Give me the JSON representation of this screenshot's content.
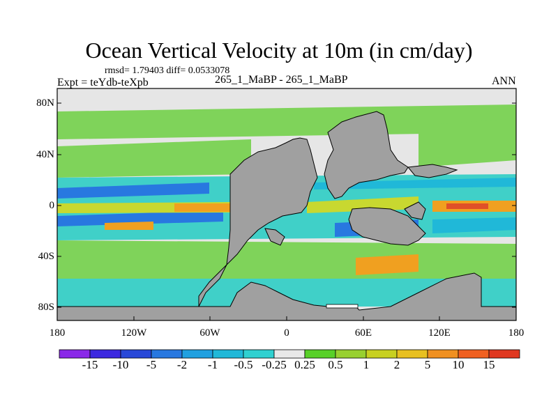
{
  "title": "Ocean Vertical Velocity at 10m (in cm/day)",
  "stats": "rmsd= 1.79403 diff= 0.0533078",
  "experiment": "Expt = teYdb-teXpb",
  "case": "265_1_MaBP - 265_1_MaBP",
  "season": "ANN",
  "map": {
    "y_ticks": [
      "80N",
      "40N",
      "0",
      "40S",
      "80S"
    ],
    "x_ticks": [
      "180",
      "120W",
      "60W",
      "0",
      "60E",
      "120E",
      "180"
    ],
    "colors": {
      "land": "#a0a0a0",
      "background": "#e6e6e6",
      "green": "#7fd35a",
      "cyan": "#40d0c8",
      "teal": "#20b8d8",
      "blue": "#2878e0",
      "yellow": "#c8d830",
      "orange": "#f0a020",
      "red": "#e05028"
    }
  },
  "colorbar": {
    "labels": [
      "-15",
      "-10",
      "-5",
      "-2",
      "-1",
      "-0.5",
      "-0.25",
      "0.25",
      "0.5",
      "1",
      "2",
      "5",
      "10",
      "15"
    ],
    "colors": [
      "#8a28e8",
      "#3c28e0",
      "#2848d8",
      "#2878e0",
      "#20a0e0",
      "#20b8d8",
      "#30d0d0",
      "#e8e8e8",
      "#58d028",
      "#98d030",
      "#c8d020",
      "#e8c020",
      "#f09020",
      "#f06020",
      "#e03820"
    ]
  }
}
